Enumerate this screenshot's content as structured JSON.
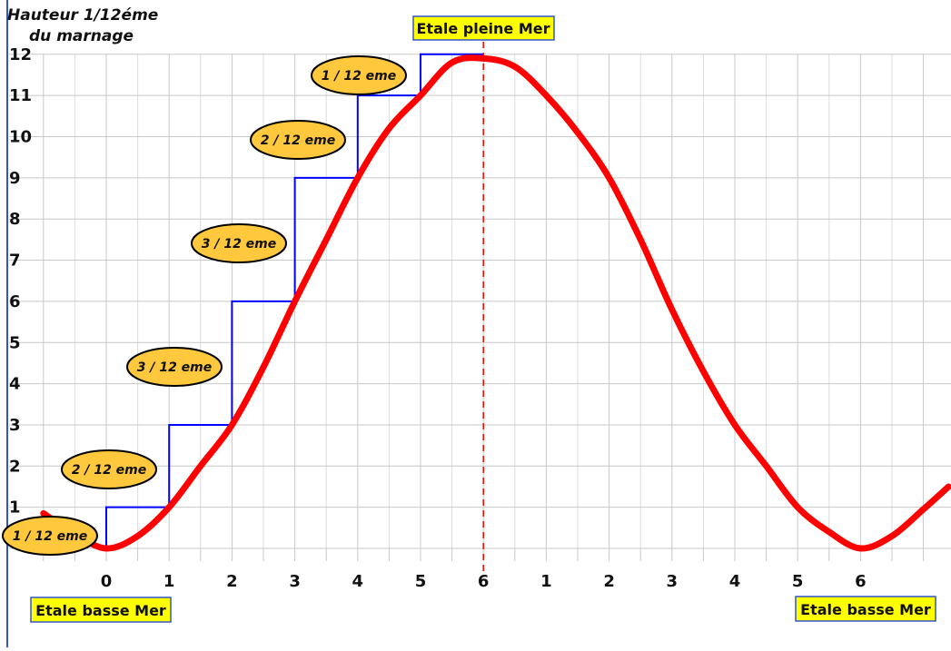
{
  "chart_data": {
    "type": "line",
    "title": "",
    "ylabel_line1": "Hauteur 1/12éme",
    "ylabel_line2": "du marnage",
    "ylim": [
      0,
      12
    ],
    "yticks": [
      "1",
      "2",
      "3",
      "4",
      "5",
      "6",
      "7",
      "8",
      "9",
      "10",
      "11",
      "12"
    ],
    "xticks": [
      "0",
      "1",
      "2",
      "3",
      "4",
      "5",
      "6",
      "1",
      "2",
      "3",
      "4",
      "5",
      "6"
    ],
    "xlim_hours": [
      -1,
      13.4
    ],
    "grid": true,
    "series": [
      {
        "style": "tide-curve",
        "color": "#ff0000",
        "x": [
          -1,
          -0.5,
          0,
          0.5,
          1,
          1.5,
          2,
          2.5,
          3,
          3.5,
          4,
          4.5,
          5,
          5.5,
          6,
          6.5,
          7,
          7.5,
          8,
          8.5,
          9,
          9.5,
          10,
          10.5,
          11,
          11.5,
          12,
          12.5,
          13,
          13.4
        ],
        "y": [
          0.85,
          0.35,
          0,
          0.3,
          1,
          2,
          3,
          4.4,
          6,
          7.5,
          9,
          10.2,
          11,
          11.8,
          11.9,
          11.7,
          11,
          10.1,
          9,
          7.5,
          5.8,
          4.3,
          3,
          2,
          1,
          0.4,
          0,
          0.3,
          0.95,
          1.5
        ]
      },
      {
        "style": "rule-of-twelfths-steps",
        "color": "#0000ff",
        "steps_x": [
          0,
          1,
          2,
          3,
          4,
          5,
          6
        ],
        "steps_y": [
          1,
          3,
          6,
          9,
          11,
          12
        ]
      }
    ],
    "high_tide_line_x": 6,
    "high_tide_line_color": "#ff0000",
    "bubbles": [
      "1 / 12 eme",
      "2 / 12 eme",
      "3 / 12 eme",
      "3  / 12 eme",
      "2 / 12 eme",
      "1 / 12 eme"
    ],
    "bubble_color": "#ffc83d",
    "label_box_color": "#ffff00",
    "label_high_tide": "Etale pleine Mer",
    "label_low_tide_start": "Etale basse Mer",
    "label_low_tide_end": "Etale basse Mer"
  }
}
